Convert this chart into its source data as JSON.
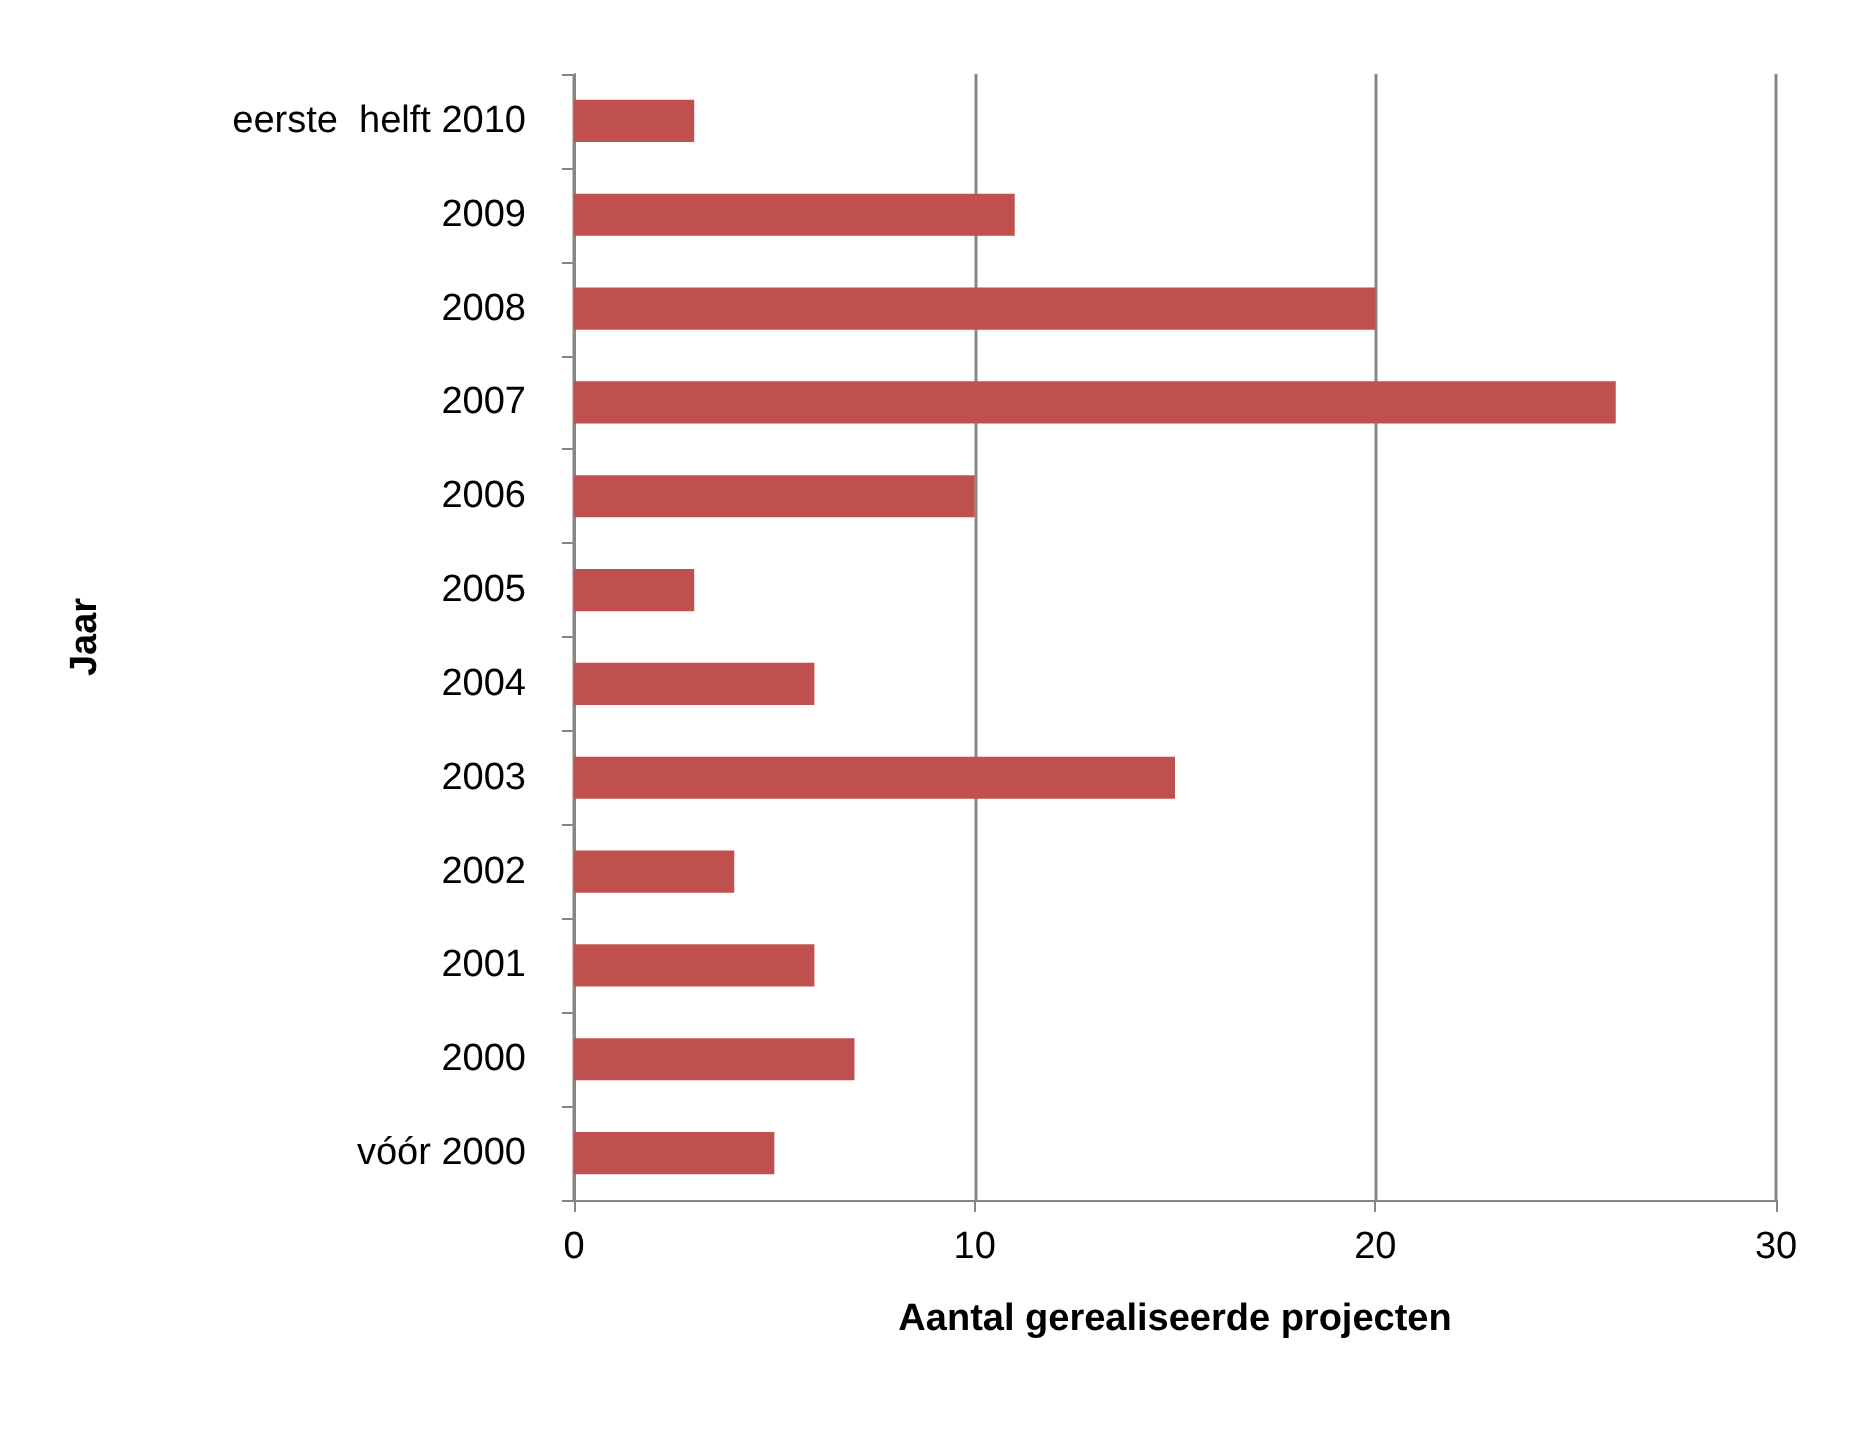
{
  "chart_data": {
    "type": "bar",
    "orientation": "horizontal",
    "categories": [
      "eerste  helft 2010",
      "2009",
      "2008",
      "2007",
      "2006",
      "2005",
      "2004",
      "2003",
      "2002",
      "2001",
      "2000",
      "vóór 2000"
    ],
    "values": [
      3,
      11,
      20,
      26,
      10,
      3,
      6,
      15,
      4,
      6,
      7,
      5
    ],
    "color": "#c0504d",
    "xlim": [
      0,
      30
    ],
    "xticks": [
      0,
      10,
      20,
      30
    ],
    "xlabel": "Aantal gerealiseerde projecten",
    "ylabel": "Jaar",
    "grid": "x"
  }
}
